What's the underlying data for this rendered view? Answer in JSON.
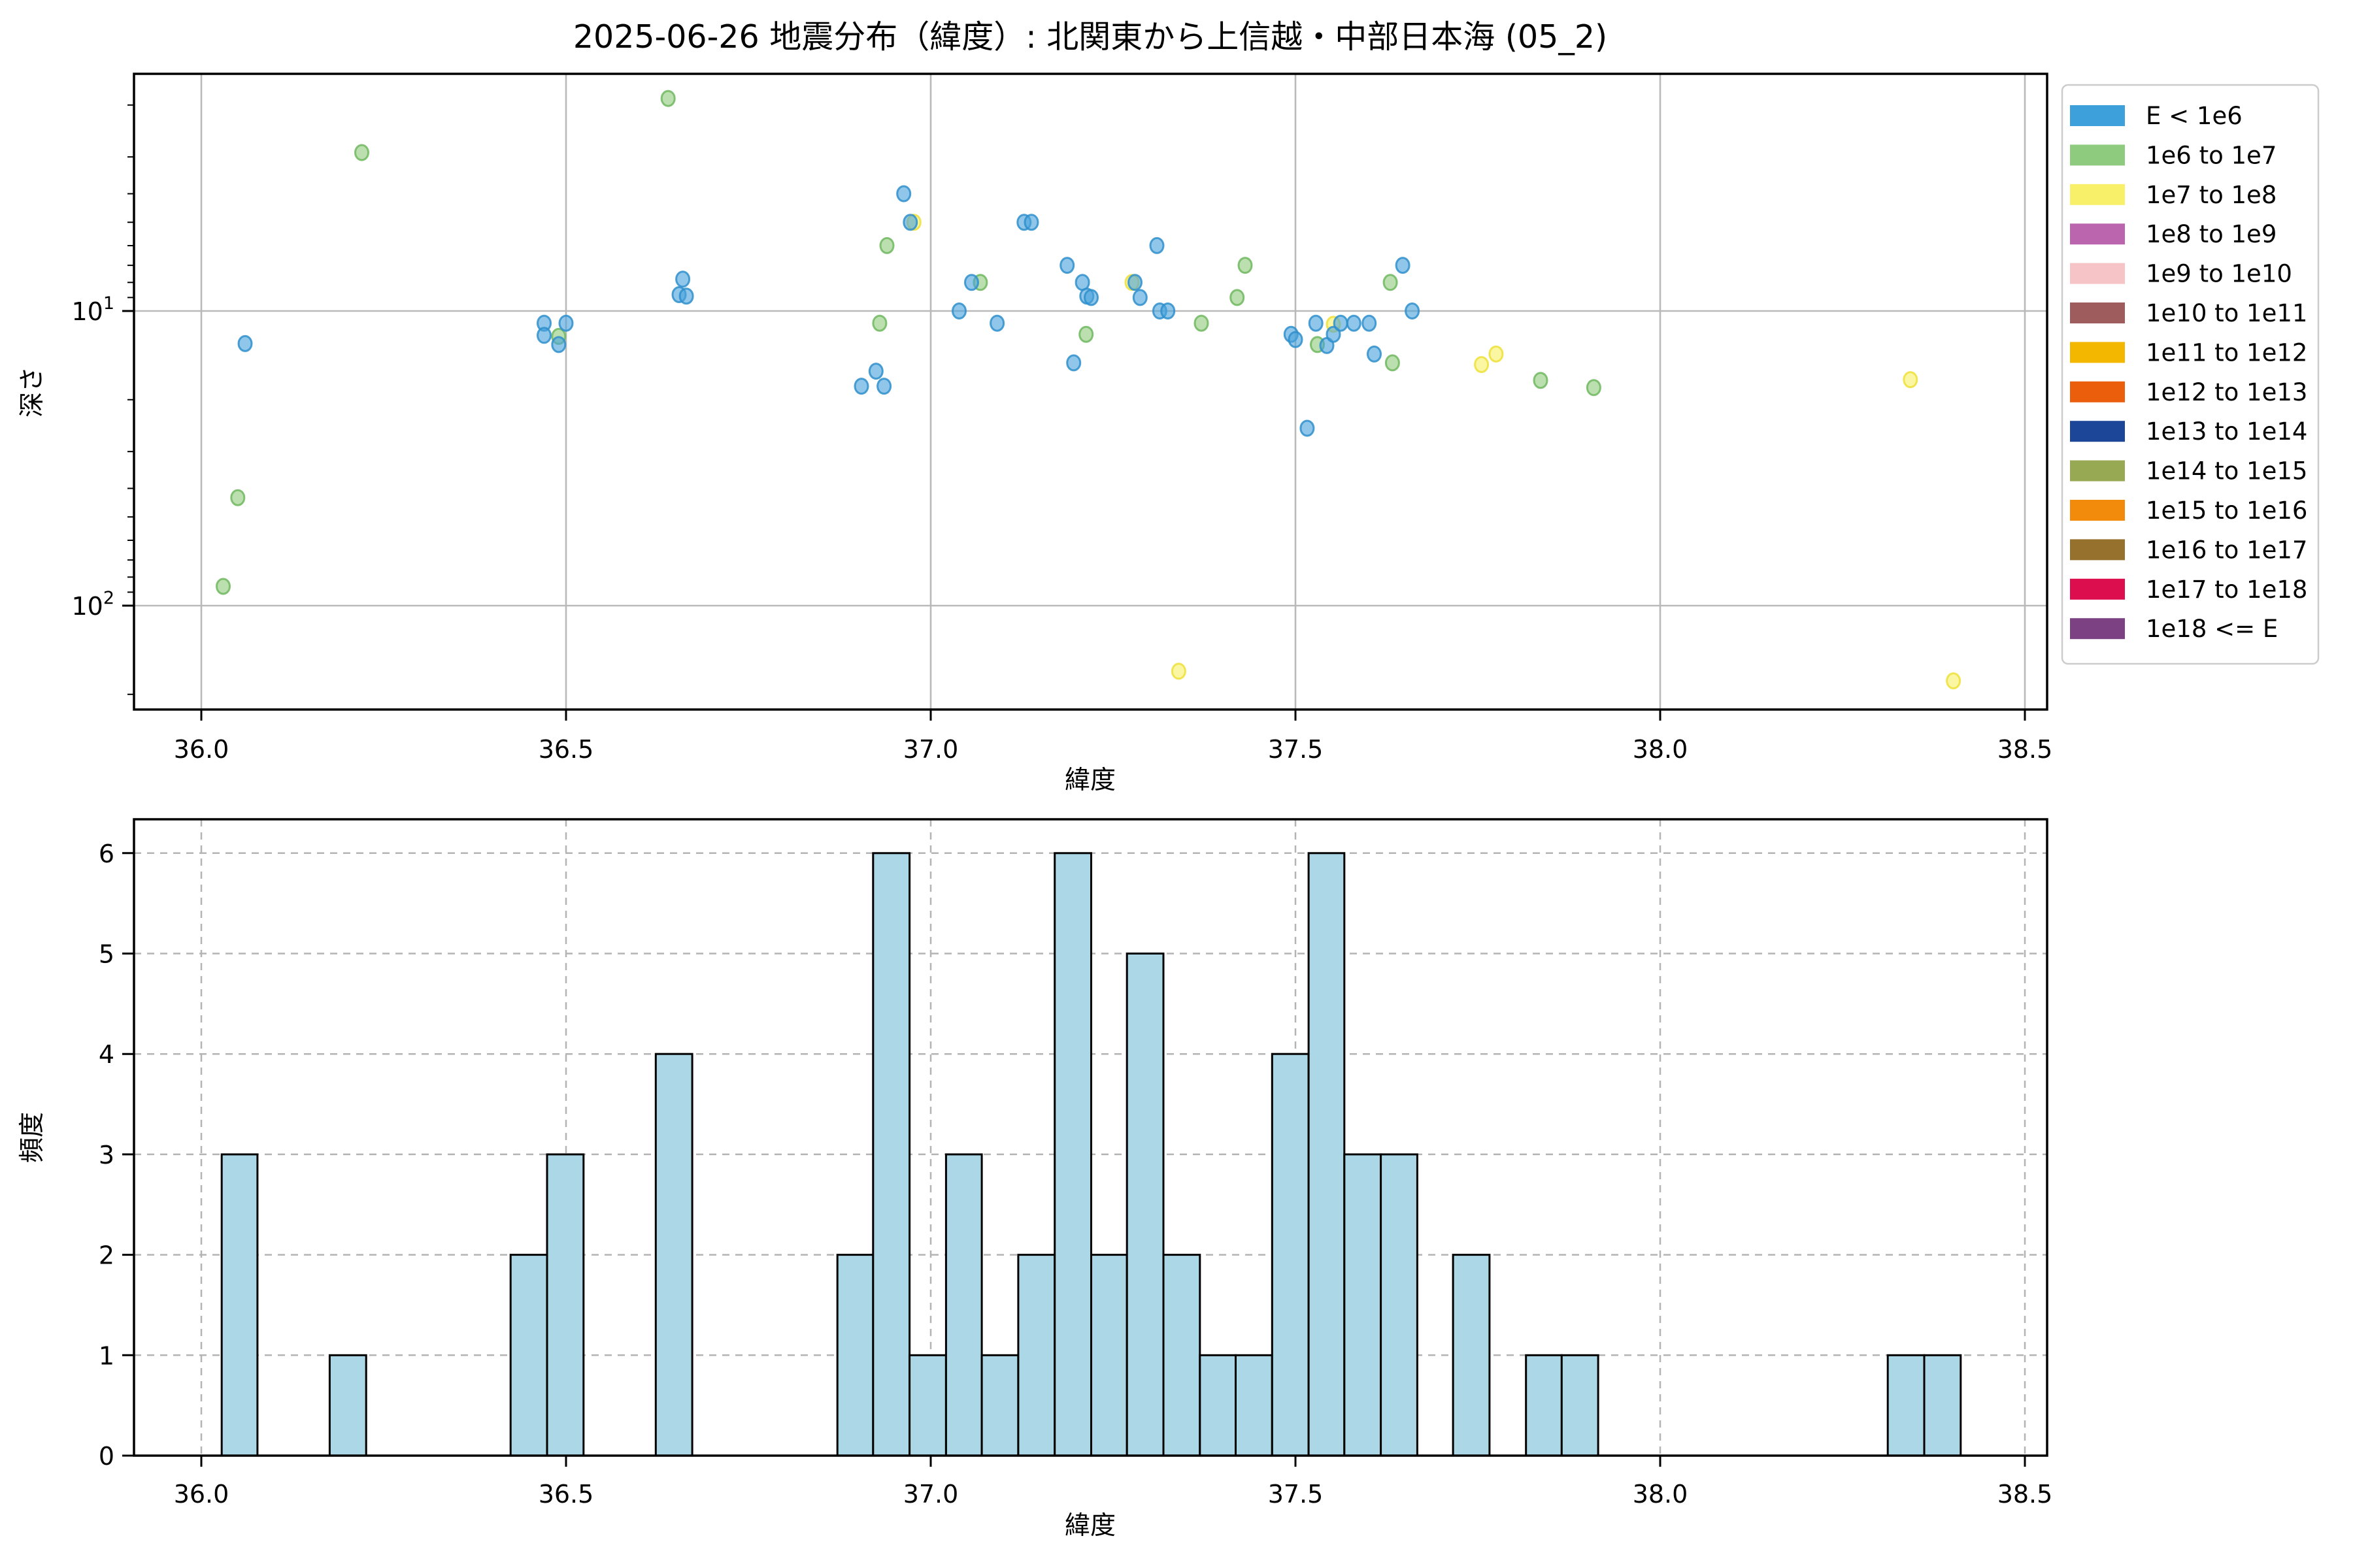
{
  "chart_data": [
    {
      "type": "scatter",
      "title": "2025-06-26 地震分布（緯度）: 北関東から上信越・中部日本海 (05_2)",
      "xlabel": "緯度",
      "ylabel": "深さ",
      "xlim": [
        35.908,
        38.531
      ],
      "ylim_depth": [
        1.57,
        225
      ],
      "yscale": "log (inverted, depth increases downward)",
      "grid": true,
      "x_ticks": [
        "36.0",
        "36.5",
        "37.0",
        "37.5",
        "38.0",
        "38.5"
      ],
      "x_tick_values": [
        36.0,
        36.5,
        37.0,
        37.5,
        38.0,
        38.5
      ],
      "y_ticks": [
        {
          "base": "10",
          "exp": "1",
          "value": 10
        },
        {
          "base": "10",
          "exp": "2",
          "value": 100
        }
      ],
      "y_minor_tick_values": [
        2,
        3,
        4,
        5,
        6,
        7,
        8,
        9,
        20,
        30,
        40,
        50,
        60,
        70,
        80,
        90,
        200
      ],
      "legend_position": "upper right, outside axes",
      "series": [
        {
          "name": "1e7 to 1e8",
          "color": "#F9F069",
          "edge": "#EDE03A",
          "points": [
            [
              36.977,
              5.0
            ],
            [
              37.276,
              8.0
            ],
            [
              37.34,
              167
            ],
            [
              37.552,
              11.1
            ],
            [
              37.755,
              15.2
            ],
            [
              37.775,
              14.0
            ],
            [
              38.343,
              17.1
            ],
            [
              38.402,
              180
            ]
          ]
        },
        {
          "name": "1e6 to 1e7",
          "color": "#93CC80",
          "edge": "#6FB95F",
          "points": [
            [
              36.03,
              86
            ],
            [
              36.05,
              43
            ],
            [
              36.22,
              2.9
            ],
            [
              36.49,
              12.2
            ],
            [
              36.64,
              1.9
            ],
            [
              36.93,
              11.0
            ],
            [
              36.94,
              6.0
            ],
            [
              37.068,
              8.0
            ],
            [
              37.213,
              12.0
            ],
            [
              37.371,
              11.0
            ],
            [
              37.42,
              9.0
            ],
            [
              37.431,
              7.0
            ],
            [
              37.53,
              13.0
            ],
            [
              37.63,
              8.0
            ],
            [
              37.633,
              15.0
            ],
            [
              37.836,
              17.2
            ],
            [
              37.909,
              18.2
            ]
          ]
        },
        {
          "name": "E < 1e6",
          "color": "#4AA3DC",
          "edge": "#2F8FCC",
          "points": [
            [
              36.06,
              12.9
            ],
            [
              36.47,
              11.0
            ],
            [
              36.47,
              12.1
            ],
            [
              36.49,
              13.0
            ],
            [
              36.5,
              11.0
            ],
            [
              36.655,
              8.8
            ],
            [
              36.66,
              7.8
            ],
            [
              36.665,
              8.9
            ],
            [
              36.905,
              18.0
            ],
            [
              36.925,
              16.0
            ],
            [
              36.936,
              18.0
            ],
            [
              36.963,
              4.0
            ],
            [
              36.972,
              5.0
            ],
            [
              37.039,
              10.0
            ],
            [
              37.056,
              8.0
            ],
            [
              37.091,
              11.0
            ],
            [
              37.128,
              5.0
            ],
            [
              37.138,
              5.0
            ],
            [
              37.187,
              7.0
            ],
            [
              37.196,
              15.0
            ],
            [
              37.208,
              8.0
            ],
            [
              37.214,
              8.9
            ],
            [
              37.22,
              9.0
            ],
            [
              37.28,
              8.0
            ],
            [
              37.287,
              9.0
            ],
            [
              37.31,
              6.0
            ],
            [
              37.314,
              10.0
            ],
            [
              37.325,
              10.0
            ],
            [
              37.494,
              12.0
            ],
            [
              37.5,
              12.5
            ],
            [
              37.516,
              25.0
            ],
            [
              37.528,
              11.0
            ],
            [
              37.543,
              13.1
            ],
            [
              37.552,
              12.0
            ],
            [
              37.562,
              11.0
            ],
            [
              37.58,
              11.0
            ],
            [
              37.601,
              11.0
            ],
            [
              37.608,
              14.0
            ],
            [
              37.647,
              7.0
            ],
            [
              37.66,
              10.0
            ]
          ]
        }
      ]
    },
    {
      "type": "bar",
      "xlabel": "緯度",
      "ylabel": "頻度",
      "xlim": [
        35.908,
        38.531
      ],
      "ylim": [
        0,
        6.34
      ],
      "grid": "dashed",
      "bar_color": "#ABD7E6",
      "bar_edge": "#000000",
      "x_ticks": [
        "36.0",
        "36.5",
        "37.0",
        "37.5",
        "38.0",
        "38.5"
      ],
      "x_tick_values": [
        36.0,
        36.5,
        37.0,
        37.5,
        38.0,
        38.5
      ],
      "y_ticks": [
        "0",
        "1",
        "2",
        "3",
        "4",
        "5",
        "6"
      ],
      "y_tick_values": [
        0,
        1,
        2,
        3,
        4,
        5,
        6
      ],
      "bars": [
        [
          36.028,
          36.077,
          3
        ],
        [
          36.176,
          36.226,
          1
        ],
        [
          36.424,
          36.474,
          2
        ],
        [
          36.474,
          36.524,
          3
        ],
        [
          36.623,
          36.673,
          4
        ],
        [
          36.872,
          36.921,
          2
        ],
        [
          36.921,
          36.971,
          6
        ],
        [
          36.971,
          37.021,
          1
        ],
        [
          37.021,
          37.07,
          3
        ],
        [
          37.07,
          37.12,
          1
        ],
        [
          37.12,
          37.17,
          2
        ],
        [
          37.17,
          37.22,
          6
        ],
        [
          37.22,
          37.269,
          2
        ],
        [
          37.269,
          37.319,
          5
        ],
        [
          37.319,
          37.369,
          2
        ],
        [
          37.369,
          37.418,
          1
        ],
        [
          37.418,
          37.468,
          1
        ],
        [
          37.468,
          37.518,
          4
        ],
        [
          37.518,
          37.567,
          6
        ],
        [
          37.567,
          37.617,
          3
        ],
        [
          37.617,
          37.667,
          3
        ],
        [
          37.716,
          37.766,
          2
        ],
        [
          37.816,
          37.865,
          1
        ],
        [
          37.865,
          37.915,
          1
        ],
        [
          38.312,
          38.362,
          1
        ],
        [
          38.362,
          38.412,
          1
        ]
      ]
    }
  ],
  "legend": {
    "entries": [
      {
        "label": "E < 1e6",
        "color": "#3DA0DB"
      },
      {
        "label": "1e6 to 1e7",
        "color": "#8FCB7E"
      },
      {
        "label": "1e7 to 1e8",
        "color": "#F9F069"
      },
      {
        "label": "1e8 to 1e9",
        "color": "#BB65AE"
      },
      {
        "label": "1e9 to 1e10",
        "color": "#F6C4C7"
      },
      {
        "label": "1e10 to 1e11",
        "color": "#9E5C5C"
      },
      {
        "label": "1e11 to 1e12",
        "color": "#F4B700"
      },
      {
        "label": "1e12 to 1e13",
        "color": "#EA5E0C"
      },
      {
        "label": "1e13 to 1e14",
        "color": "#1C4799"
      },
      {
        "label": "1e14 to 1e15",
        "color": "#98A954"
      },
      {
        "label": "1e15 to 1e16",
        "color": "#F28A0C"
      },
      {
        "label": "1e16 to 1e17",
        "color": "#95712D"
      },
      {
        "label": "1e17 to 1e18",
        "color": "#DC0E4E"
      },
      {
        "label": "1e18 <= E",
        "color": "#7C4183"
      }
    ]
  }
}
